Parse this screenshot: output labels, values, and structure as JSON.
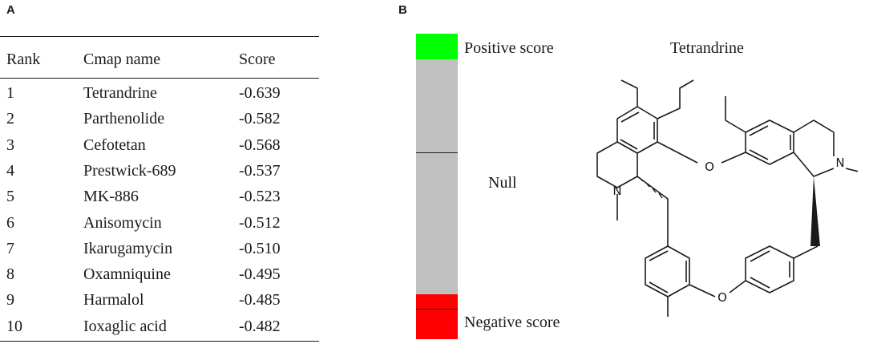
{
  "panel_a": {
    "label": "A",
    "headers": {
      "rank": "Rank",
      "name": "Cmap name",
      "score": "Score"
    },
    "rows": [
      {
        "rank": "1",
        "name": "Tetrandrine",
        "score": "-0.639"
      },
      {
        "rank": "2",
        "name": "Parthenolide",
        "score": "-0.582"
      },
      {
        "rank": "3",
        "name": "Cefotetan",
        "score": "-0.568"
      },
      {
        "rank": "4",
        "name": "Prestwick-689",
        "score": "-0.537"
      },
      {
        "rank": "5",
        "name": "MK-886",
        "score": "-0.523"
      },
      {
        "rank": "6",
        "name": "Anisomycin",
        "score": "-0.512"
      },
      {
        "rank": "7",
        "name": "Ikarugamycin",
        "score": "-0.510"
      },
      {
        "rank": "8",
        "name": "Oxamniquine",
        "score": "-0.495"
      },
      {
        "rank": "9",
        "name": "Harmalol",
        "score": "-0.485"
      },
      {
        "rank": "10",
        "name": "Ioxaglic acid",
        "score": "-0.482"
      }
    ]
  },
  "panel_b": {
    "label": "B",
    "positive_label": "Positive score",
    "null_label": "Null",
    "negative_label": "Negative score",
    "compound_name": "Tetrandrine",
    "colors": {
      "positive": "#00ff00",
      "null": "#c0c0c0",
      "negative": "#ff0000"
    },
    "atom_labels": {
      "oxygen": "O",
      "nitrogen": "N"
    }
  }
}
